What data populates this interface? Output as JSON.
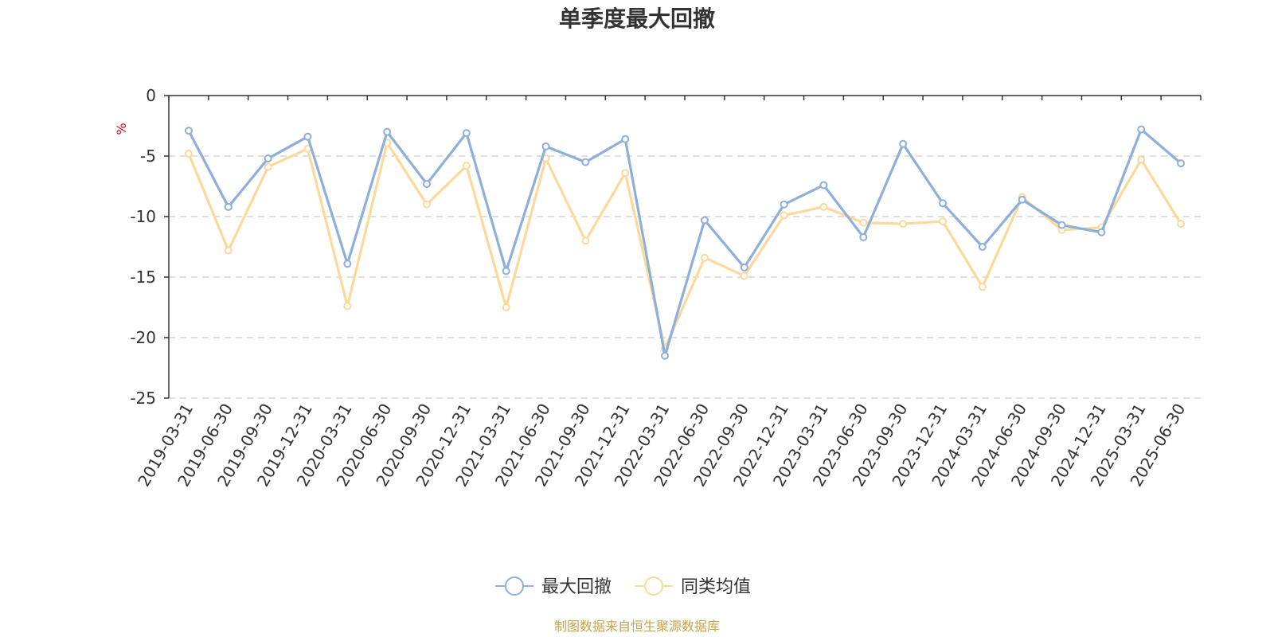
{
  "chart_data": {
    "type": "line",
    "title": "单季度最大回撤",
    "ylabel": "%",
    "ylim": [
      -25,
      0
    ],
    "yticks": [
      0,
      -5,
      -10,
      -15,
      -20,
      -25
    ],
    "grid": true,
    "legend_position": "bottom",
    "categories": [
      "2019-03-31",
      "2019-06-30",
      "2019-09-30",
      "2019-12-31",
      "2020-03-31",
      "2020-06-30",
      "2020-09-30",
      "2020-12-31",
      "2021-03-31",
      "2021-06-30",
      "2021-09-30",
      "2021-12-31",
      "2022-03-31",
      "2022-06-30",
      "2022-09-30",
      "2022-12-31",
      "2023-03-31",
      "2023-06-30",
      "2023-09-30",
      "2023-12-31",
      "2024-03-31",
      "2024-06-30",
      "2024-09-30",
      "2024-12-31",
      "2025-03-31",
      "2025-06-30"
    ],
    "series": [
      {
        "name": "最大回撤",
        "color": "#8eaedb",
        "values": [
          -2.9,
          -9.2,
          -5.2,
          -3.4,
          -13.9,
          -3.0,
          -7.3,
          -3.1,
          -14.5,
          -4.2,
          -5.5,
          -3.6,
          -21.5,
          -10.3,
          -14.2,
          -9.0,
          -7.4,
          -11.7,
          -4.0,
          -8.9,
          -12.5,
          -8.6,
          -10.7,
          -11.3,
          -2.8,
          -5.6
        ]
      },
      {
        "name": "同类均值",
        "color": "#fbd99b",
        "values": [
          -4.8,
          -12.8,
          -5.9,
          -4.4,
          -17.4,
          -3.9,
          -9.0,
          -5.8,
          -17.5,
          -5.2,
          -12.0,
          -6.4,
          -20.9,
          -13.4,
          -14.9,
          -9.9,
          -9.2,
          -10.5,
          -10.6,
          -10.4,
          -15.8,
          -8.4,
          -11.1,
          -10.9,
          -5.3,
          -10.6
        ]
      }
    ]
  },
  "source_text": "制图数据来自恒生聚源数据库",
  "colors": {
    "axis": "#333333",
    "grid": "#cccccc",
    "unit": "#e0000d",
    "source": "#c8a34a"
  }
}
